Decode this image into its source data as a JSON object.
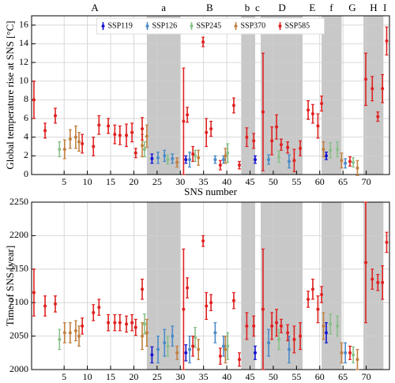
{
  "chart_data": [
    {
      "type": "errorbar",
      "ylabel": "Global temperature rise at SNS [°C]",
      "xlabel": "SNS number",
      "xlim": [
        -2,
        75
      ],
      "xticks": [
        5,
        10,
        15,
        20,
        25,
        30,
        35,
        40,
        45,
        50,
        55,
        60,
        65,
        70
      ],
      "ylim": [
        0,
        17
      ],
      "yticks": [
        0,
        2,
        4,
        6,
        8,
        10,
        12,
        14,
        16
      ],
      "grid": true,
      "legend": "top",
      "shaded": [
        [
          22.8,
          30.0
        ],
        [
          43.1,
          46.1
        ],
        [
          47.3,
          56.3
        ],
        [
          60.4,
          64.7
        ],
        [
          69.4,
          73.7
        ]
      ],
      "regions": [
        {
          "label": "A",
          "x": 11.6
        },
        {
          "label": "a",
          "x": 26.4
        },
        {
          "label": "B",
          "x": 36.3
        },
        {
          "label": "b",
          "x": 44.4
        },
        {
          "label": "c",
          "x": 46.6
        },
        {
          "label": "D",
          "x": 51.9
        },
        {
          "label": "E",
          "x": 58.4
        },
        {
          "label": "f",
          "x": 62.5
        },
        {
          "label": "G",
          "x": 67.0
        },
        {
          "label": "H",
          "x": 71.6
        },
        {
          "label": "I",
          "x": 74.0
        }
      ],
      "series": [
        {
          "name": "SSP119",
          "color": "#1414d2",
          "x": [
            23.9,
            31.2,
            46.1,
            61.4
          ],
          "values": [
            1.7,
            1.6,
            1.6,
            2.0
          ],
          "errors": [
            0.5,
            0.4,
            0.4,
            0.4
          ]
        },
        {
          "name": "SSP126",
          "color": "#4a8ac8",
          "x": [
            25.2,
            26.6,
            28.3,
            32.0,
            37.5,
            39.3,
            49.0,
            53.4,
            65.5
          ],
          "values": [
            1.8,
            2.0,
            1.7,
            1.6,
            1.6,
            1.6,
            1.6,
            1.4,
            1.2
          ],
          "errors": [
            0.6,
            0.6,
            0.5,
            0.8,
            0.4,
            0.4,
            0.5,
            0.7,
            0.5
          ]
        },
        {
          "name": "SSP245",
          "color": "#88c088",
          "x": [
            4.0,
            22.3,
            27.3,
            33.2,
            40.2,
            51.2,
            62.3,
            63.8,
            67.2
          ],
          "values": [
            2.7,
            2.7,
            1.6,
            2.0,
            2.3,
            1.9,
            2.6,
            2.7,
            1.3
          ],
          "errors": [
            0.8,
            0.8,
            0.5,
            0.6,
            1.0,
            0.6,
            0.8,
            0.8,
            0.5
          ]
        },
        {
          "name": "SSP370",
          "color": "#c08040",
          "x": [
            5.1,
            6.3,
            7.5,
            8.2,
            21.8,
            22.8,
            29.3,
            33.9,
            39.7,
            60.8,
            64.7,
            68.1
          ],
          "values": [
            2.7,
            3.8,
            4.0,
            3.5,
            3.1,
            4.1,
            1.3,
            1.8,
            2.0,
            2.7,
            1.5,
            0.7
          ],
          "errors": [
            1.0,
            1.0,
            1.2,
            1.0,
            1.2,
            1.2,
            0.5,
            0.8,
            0.8,
            0.8,
            0.8,
            0.8
          ]
        },
        {
          "name": "SSP585",
          "color": "#e02020",
          "x": [
            -1.5,
            0.9,
            3.1,
            8.9,
            11.3,
            12.5,
            14.5,
            15.9,
            17.0,
            18.4,
            19.6,
            20.4,
            21.8,
            30.7,
            31.5,
            32.7,
            34.9,
            35.6,
            36.6,
            38.6,
            41.5,
            42.7,
            44.3,
            45.8,
            47.8,
            49.7,
            50.7,
            51.7,
            53.1,
            54.5,
            55.8,
            57.5,
            58.5,
            59.6,
            60.4,
            66.5,
            69.9,
            71.3,
            72.5,
            73.5,
            74.4
          ],
          "values": [
            8.0,
            4.7,
            6.3,
            3.3,
            3.0,
            5.3,
            5.2,
            4.3,
            4.2,
            4.2,
            4.5,
            2.3,
            4.9,
            5.7,
            6.4,
            2.2,
            14.2,
            4.5,
            4.9,
            1.0,
            7.4,
            1.0,
            4.0,
            3.6,
            6.7,
            3.6,
            5.1,
            3.2,
            2.9,
            1.5,
            2.8,
            6.9,
            6.5,
            5.2,
            7.6,
            1.4,
            10.2,
            9.2,
            6.2,
            9.2,
            14.3
          ],
          "errors": [
            2.0,
            0.8,
            0.8,
            1.0,
            1.0,
            1.0,
            0.8,
            1.0,
            1.0,
            1.2,
            1.0,
            0.5,
            1.2,
            5.7,
            0.8,
            0.8,
            0.5,
            1.5,
            0.8,
            0.5,
            0.8,
            0.4,
            1.0,
            0.8,
            6.3,
            1.5,
            1.3,
            0.6,
            0.6,
            1.2,
            0.8,
            1.0,
            1.0,
            1.3,
            0.8,
            0.5,
            2.8,
            1.3,
            0.5,
            1.5,
            1.5
          ]
        }
      ]
    },
    {
      "type": "errorbar",
      "ylabel": "Time of SNS [year]",
      "xlim": [
        -2,
        75
      ],
      "xticks": [
        5,
        10,
        15,
        20,
        25,
        30,
        35,
        40,
        45,
        50,
        55,
        60,
        65,
        70
      ],
      "ylim": [
        2000,
        2250
      ],
      "yticks": [
        2000,
        2050,
        2100,
        2150,
        2200,
        2250
      ],
      "grid": true,
      "shaded": [
        [
          22.8,
          30.0
        ],
        [
          43.1,
          46.1
        ],
        [
          47.3,
          56.3
        ],
        [
          60.4,
          64.7
        ],
        [
          69.4,
          73.7
        ]
      ],
      "series": [
        {
          "color": "#1414d2",
          "x": [
            23.9,
            31.2,
            46.1,
            61.4
          ],
          "values": [
            2022,
            2025,
            2025,
            2055
          ],
          "errors": [
            12,
            12,
            10,
            15
          ]
        },
        {
          "color": "#4a8ac8",
          "x": [
            25.2,
            26.6,
            28.3,
            32.0,
            37.5,
            39.3,
            49.0,
            53.4,
            65.5
          ],
          "values": [
            2030,
            2040,
            2050,
            2030,
            2055,
            2035,
            2040,
            2030,
            2025
          ],
          "errors": [
            20,
            20,
            15,
            20,
            15,
            15,
            20,
            20,
            15
          ]
        },
        {
          "color": "#88c088",
          "x": [
            4.0,
            22.3,
            27.3,
            33.2,
            40.2,
            51.2,
            62.3,
            63.8,
            67.2
          ],
          "values": [
            2045,
            2068,
            2035,
            2048,
            2035,
            2045,
            2068,
            2065,
            2022
          ],
          "errors": [
            15,
            15,
            15,
            15,
            20,
            15,
            15,
            15,
            12
          ]
        },
        {
          "color": "#c08040",
          "x": [
            5.1,
            6.3,
            7.5,
            8.2,
            21.8,
            22.8,
            29.3,
            33.9,
            39.7,
            60.8,
            64.7,
            68.1
          ],
          "values": [
            2055,
            2055,
            2058,
            2050,
            2050,
            2055,
            2025,
            2030,
            2030,
            2065,
            2025,
            2015
          ],
          "errors": [
            15,
            15,
            15,
            15,
            20,
            20,
            10,
            15,
            20,
            20,
            15,
            15
          ]
        },
        {
          "color": "#e02020",
          "x": [
            -1.5,
            0.9,
            3.1,
            8.9,
            11.3,
            12.5,
            14.5,
            15.9,
            17.0,
            18.4,
            19.6,
            20.4,
            21.8,
            30.7,
            31.5,
            32.7,
            34.9,
            35.6,
            36.6,
            38.6,
            41.5,
            42.7,
            44.3,
            45.8,
            47.8,
            49.7,
            50.7,
            51.7,
            53.1,
            54.5,
            55.8,
            57.5,
            58.5,
            59.6,
            60.4,
            66.5,
            69.9,
            71.3,
            72.5,
            73.5,
            74.4
          ],
          "values": [
            2115,
            2095,
            2098,
            2065,
            2085,
            2093,
            2070,
            2070,
            2070,
            2068,
            2070,
            2063,
            2120,
            2090,
            2122,
            2035,
            2192,
            2095,
            2100,
            2020,
            2103,
            2015,
            2065,
            2065,
            2090,
            2065,
            2070,
            2065,
            2055,
            2045,
            2050,
            2105,
            2120,
            2090,
            2112,
            2025,
            2160,
            2135,
            2130,
            2130,
            2190
          ],
          "errors": [
            35,
            15,
            12,
            12,
            12,
            12,
            12,
            12,
            12,
            12,
            12,
            12,
            15,
            90,
            15,
            15,
            8,
            20,
            12,
            12,
            12,
            10,
            20,
            15,
            90,
            20,
            20,
            10,
            12,
            20,
            20,
            12,
            15,
            20,
            12,
            10,
            90,
            15,
            12,
            25,
            15
          ]
        }
      ]
    }
  ]
}
